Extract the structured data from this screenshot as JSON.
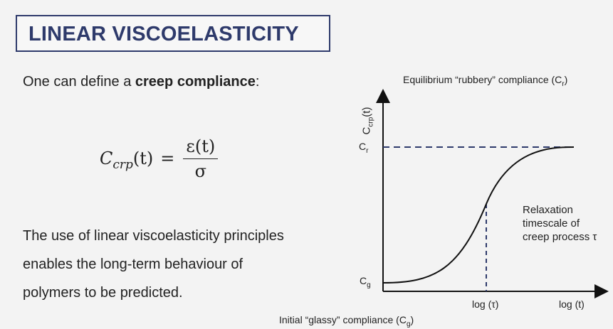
{
  "slide": {
    "title": "LINEAR VISCOELASTICITY",
    "intro": {
      "prefix": "One can define a ",
      "bold": "creep compliance",
      "suffix": ":"
    },
    "formula": {
      "lhs_var": "C",
      "lhs_sub": "crp",
      "lhs_arg": "(t)",
      "equals": "=",
      "numerator": "ε(t)",
      "denominator": "σ"
    },
    "body_lines": [
      "The use of linear viscoelasticity principles",
      "enables the long-term behaviour of",
      "polymers to be predicted."
    ]
  },
  "diagram": {
    "top_label": {
      "text": "Equilibrium “rubbery” compliance (C",
      "sub": "r",
      "end": ")"
    },
    "bottom_label": {
      "text": "Initial “glassy” compliance (C",
      "sub": "g",
      "end": ")"
    },
    "y_axis_label": {
      "main": "C",
      "sub": "crp",
      "end": "(t)"
    },
    "cr_tick": {
      "main": "C",
      "sub": "r"
    },
    "cg_tick": {
      "main": "C",
      "sub": "g"
    },
    "x_tick_tau": "log (τ)",
    "x_tick_t": "log (t)",
    "relaxation_lines": [
      "Relaxation",
      "timescale of",
      "creep process τ"
    ],
    "colors": {
      "curve": "#111111",
      "dashed": "#2e3a6b",
      "title": "#2e3a6b"
    }
  }
}
